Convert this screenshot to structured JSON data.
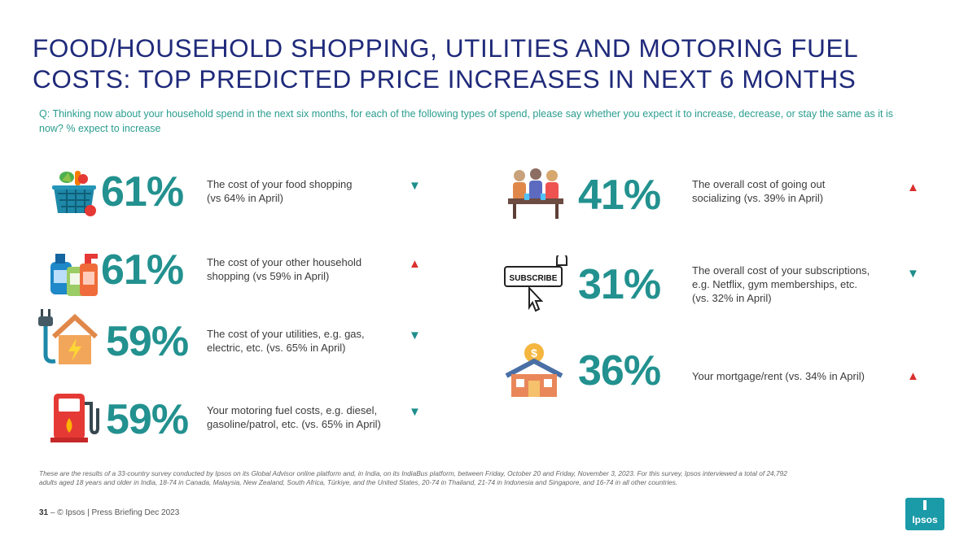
{
  "title": {
    "line1": "FOOD/HOUSEHOLD SHOPPING, UTILITIES AND MOTORING FUEL",
    "line2": "COSTS: TOP PREDICTED PRICE INCREASES IN NEXT 6 MONTHS"
  },
  "question": "Q: Thinking now about your household spend in the next six months, for each of the following types of spend, please say whether you expect it to increase, decrease, or stay the same as it is now? % expect to increase",
  "stats": [
    {
      "icon": "grocery-basket-icon",
      "value": "61%",
      "line1": "The cost of your food shopping",
      "line2": "(vs 64% in April)",
      "line3": "",
      "trend": "down",
      "arrow": "▼"
    },
    {
      "icon": "cleaning-products-icon",
      "value": "61%",
      "line1": "The cost of your  other household",
      "line2": "shopping (vs 59% in April)",
      "line3": "",
      "trend": "up",
      "arrow": "▲"
    },
    {
      "icon": "utilities-house-plug-icon",
      "value": "59%",
      "line1": "The cost of your utilities, e.g. gas,",
      "line2": "electric, etc. (vs. 65% in April)",
      "line3": "",
      "trend": "down",
      "arrow": "▼"
    },
    {
      "icon": "fuel-pump-icon",
      "value": "59%",
      "line1": "Your motoring fuel costs, e.g. diesel,",
      "line2": "gasoline/patrol, etc. (vs. 65% in April)",
      "line3": "",
      "trend": "down",
      "arrow": "▼"
    },
    {
      "icon": "people-dining-icon",
      "value": "41%",
      "line1": "The overall cost of going out",
      "line2": "socializing (vs. 39% in April)",
      "line3": "",
      "trend": "up",
      "arrow": "▲"
    },
    {
      "icon": "subscribe-button-icon",
      "icon_text": "SUBSCRIBE",
      "value": "31%",
      "line1": "The overall cost of your subscriptions,",
      "line2": "e.g. Netflix, gym memberships, etc.",
      "line3": "(vs. 32% in April)",
      "trend": "down",
      "arrow": "▼"
    },
    {
      "icon": "house-dollar-icon",
      "value": "36%",
      "line1": "Your mortgage/rent (vs. 34% in April)",
      "line2": "",
      "line3": "",
      "trend": "up",
      "arrow": "▲"
    }
  ],
  "footnote": {
    "line1": "These are the results of a 33-country survey conducted by Ipsos on its Global Advisor online platform and, in India, on its IndiaBus platform, between Friday, October 20 and Friday, November 3, 2023. For this survey, Ipsos interviewed a total of 24,792",
    "line2": "adults aged 18 years and older in India, 18-74 in Canada, Malaysia, New Zealand, South Africa, Türkiye, and the United States, 20-74 in Thailand, 21-74 in Indonesia and Singapore, and 16-74 in all other countries."
  },
  "footer": {
    "page": "31",
    "separator": "–",
    "source": "© Ipsos | Press Briefing Dec 2023"
  },
  "logo_text": "Ipsos",
  "colors": {
    "title": "#1f2a7a",
    "percent": "#22918f",
    "question": "#2a9d8f",
    "down_arrow": "#1d8e8c",
    "up_arrow": "#d9302f",
    "logo": "#1b9aa8"
  }
}
